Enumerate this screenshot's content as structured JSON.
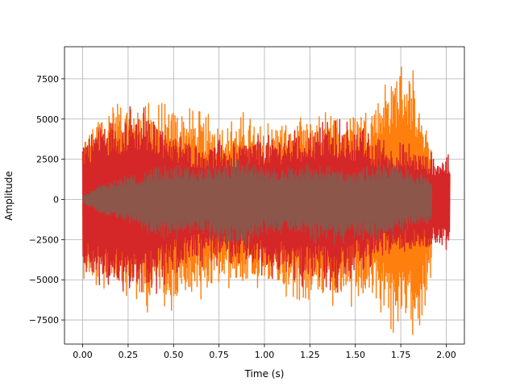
{
  "chart_data": {
    "type": "line",
    "title": "",
    "xlabel": "Time (s)",
    "ylabel": "Amplitude",
    "xlim": [
      -0.1,
      2.1
    ],
    "ylim": [
      -9000,
      9500
    ],
    "x_ticks": [
      0.0,
      0.25,
      0.5,
      0.75,
      1.0,
      1.25,
      1.5,
      1.75,
      2.0
    ],
    "x_tick_labels": [
      "0.00",
      "0.25",
      "0.50",
      "0.75",
      "1.00",
      "1.25",
      "1.50",
      "1.75",
      "2.00"
    ],
    "y_ticks": [
      -7500,
      -5000,
      -2500,
      0,
      2500,
      5000,
      7500
    ],
    "y_tick_labels": [
      "−7500",
      "−5000",
      "−2500",
      "0",
      "2500",
      "5000",
      "7500"
    ],
    "grid": true,
    "legend": "none",
    "series": [
      {
        "color": "#ff7f0e",
        "x_end": 1.92,
        "x": [
          0.0,
          0.1,
          0.2,
          0.3,
          0.35,
          0.4,
          0.5,
          0.6,
          0.7,
          0.8,
          0.9,
          1.0,
          1.1,
          1.2,
          1.3,
          1.4,
          1.5,
          1.6,
          1.7,
          1.75,
          1.8,
          1.85,
          1.92
        ],
        "upper": [
          3500,
          5500,
          5600,
          5900,
          6000,
          5200,
          5600,
          5100,
          4800,
          4600,
          4900,
          4300,
          4800,
          5000,
          4700,
          5200,
          5300,
          5900,
          7300,
          8600,
          7700,
          6200,
          3500
        ],
        "lower": [
          -4500,
          -5200,
          -5500,
          -5700,
          -7000,
          -5600,
          -6600,
          -5900,
          -5600,
          -5000,
          -5300,
          -5100,
          -5500,
          -5600,
          -6000,
          -6100,
          -6300,
          -6200,
          -7400,
          -8000,
          -7900,
          -7200,
          -4500
        ]
      },
      {
        "color": "#d62728",
        "x_end": 2.02,
        "x": [
          0.0,
          0.1,
          0.2,
          0.3,
          0.4,
          0.5,
          0.6,
          0.7,
          0.8,
          0.9,
          1.0,
          1.1,
          1.2,
          1.3,
          1.4,
          1.5,
          1.6,
          1.7,
          1.8,
          1.9,
          2.02
        ],
        "upper": [
          3600,
          4800,
          5000,
          5300,
          5000,
          4000,
          3500,
          3300,
          3300,
          3600,
          3800,
          3900,
          4200,
          4400,
          4500,
          4300,
          3600,
          3200,
          3100,
          2700,
          2500
        ],
        "lower": [
          -4600,
          -5000,
          -5200,
          -5400,
          -5300,
          -4500,
          -3900,
          -3700,
          -3800,
          -3900,
          -4400,
          -4600,
          -4900,
          -5100,
          -5300,
          -4500,
          -3800,
          -3500,
          -3300,
          -3100,
          -3000
        ]
      },
      {
        "color": "#8c564b",
        "x_end": 1.92,
        "x": [
          0.0,
          0.1,
          0.2,
          0.3,
          0.4,
          0.5,
          0.6,
          0.7,
          0.8,
          0.9,
          1.0,
          1.1,
          1.2,
          1.3,
          1.4,
          1.5,
          1.6,
          1.7,
          1.8,
          1.92
        ],
        "upper": [
          200,
          900,
          1300,
          1400,
          1800,
          2000,
          1900,
          2100,
          2200,
          2300,
          1700,
          1900,
          2000,
          1900,
          1800,
          1700,
          1900,
          2300,
          1800,
          1300
        ],
        "lower": [
          -200,
          -900,
          -1400,
          -1500,
          -2400,
          -2200,
          -1900,
          -2200,
          -2700,
          -2800,
          -1900,
          -2000,
          -2100,
          -2500,
          -2600,
          -2300,
          -2300,
          -2100,
          -1800,
          -1300
        ]
      }
    ]
  }
}
